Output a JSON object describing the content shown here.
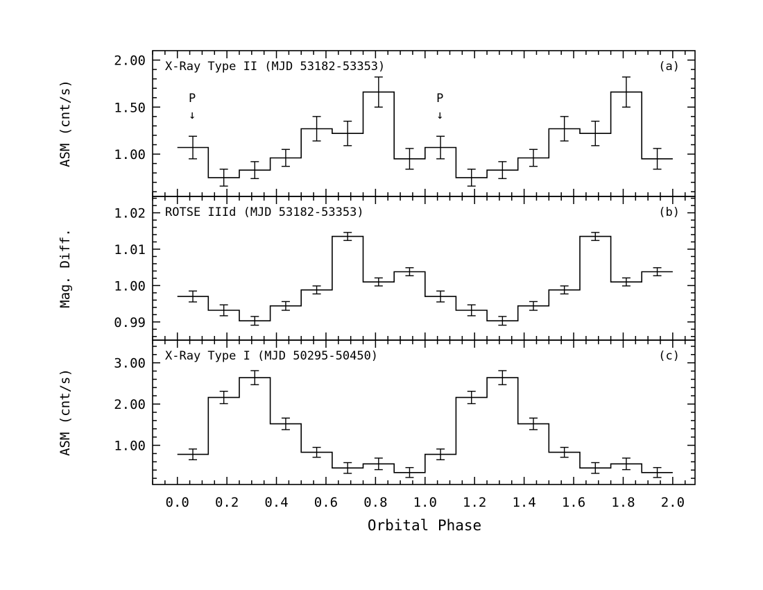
{
  "chart_data": [
    {
      "type": "line",
      "panel_tag": "(a)",
      "title": "X-Ray Type II (MJD 53182-53353)",
      "ylabel": "ASM (cnt/s)",
      "ylim": [
        0.55,
        2.1
      ],
      "yticks": [
        1.0,
        1.5,
        2.0
      ],
      "yticklabels": [
        "1.00",
        "1.50",
        "2.00"
      ],
      "yminor_step": 0.1,
      "bin_width": 0.125,
      "x": [
        0.0625,
        0.1875,
        0.3125,
        0.4375,
        0.5625,
        0.6875,
        0.8125,
        0.9375,
        1.0625,
        1.1875,
        1.3125,
        1.4375,
        1.5625,
        1.6875,
        1.8125,
        1.9375
      ],
      "y": [
        1.07,
        0.75,
        0.83,
        0.96,
        1.27,
        1.22,
        1.66,
        0.95,
        1.07,
        0.75,
        0.83,
        0.96,
        1.27,
        1.22,
        1.66,
        0.95
      ],
      "yerr": [
        0.12,
        0.09,
        0.09,
        0.09,
        0.13,
        0.13,
        0.16,
        0.11,
        0.12,
        0.09,
        0.09,
        0.09,
        0.13,
        0.13,
        0.16,
        0.11
      ],
      "annotations": [
        {
          "text": "P",
          "arrow": "↓",
          "x": 0.06,
          "y": 1.48
        },
        {
          "text": "P",
          "arrow": "↓",
          "x": 1.06,
          "y": 1.48
        }
      ]
    },
    {
      "type": "line",
      "panel_tag": "(b)",
      "title": "ROTSE IIId (MJD 53182-53353)",
      "ylabel": "Mag. Diff.",
      "ylim": [
        0.985,
        1.0245
      ],
      "yticks": [
        0.99,
        1.0,
        1.01,
        1.02
      ],
      "yticklabels": [
        "0.99",
        "1.00",
        "1.01",
        "1.02"
      ],
      "yminor_step": 0.002,
      "bin_width": 0.125,
      "x": [
        0.0625,
        0.1875,
        0.3125,
        0.4375,
        0.5625,
        0.6875,
        0.8125,
        0.9375,
        1.0625,
        1.1875,
        1.3125,
        1.4375,
        1.5625,
        1.6875,
        1.8125,
        1.9375
      ],
      "y": [
        0.997,
        0.9932,
        0.9903,
        0.9944,
        0.9988,
        1.0135,
        1.001,
        1.0038,
        0.997,
        0.9932,
        0.9903,
        0.9944,
        0.9988,
        1.0135,
        1.001,
        1.0038
      ],
      "yerr": [
        0.0015,
        0.0015,
        0.0012,
        0.0012,
        0.0011,
        0.0011,
        0.0011,
        0.0011,
        0.0015,
        0.0015,
        0.0012,
        0.0012,
        0.0011,
        0.0011,
        0.0011,
        0.0011
      ]
    },
    {
      "type": "line",
      "panel_tag": "(c)",
      "title": "X-Ray Type I (MJD 50295-50450)",
      "ylabel": "ASM (cnt/s)",
      "xlabel": "Orbital Phase",
      "ylim": [
        0.05,
        3.55
      ],
      "yticks": [
        1.0,
        2.0,
        3.0
      ],
      "yticklabels": [
        "1.00",
        "2.00",
        "3.00"
      ],
      "yminor_step": 0.2,
      "xlim": [
        -0.1,
        2.09
      ],
      "xticks": [
        0.0,
        0.2,
        0.4,
        0.6,
        0.8,
        1.0,
        1.2,
        1.4,
        1.6,
        1.8,
        2.0
      ],
      "xticklabels": [
        "0.0",
        "0.2",
        "0.4",
        "0.6",
        "0.8",
        "1.0",
        "1.2",
        "1.4",
        "1.6",
        "1.8",
        "2.0"
      ],
      "xminor_step": 0.05,
      "bin_width": 0.125,
      "x": [
        0.0625,
        0.1875,
        0.3125,
        0.4375,
        0.5625,
        0.6875,
        0.8125,
        0.9375,
        1.0625,
        1.1875,
        1.3125,
        1.4375,
        1.5625,
        1.6875,
        1.8125,
        1.9375
      ],
      "y": [
        0.78,
        2.16,
        2.64,
        1.52,
        0.83,
        0.45,
        0.55,
        0.34,
        0.78,
        2.16,
        2.64,
        1.52,
        0.83,
        0.45,
        0.55,
        0.34
      ],
      "yerr": [
        0.13,
        0.15,
        0.17,
        0.14,
        0.12,
        0.13,
        0.14,
        0.12,
        0.13,
        0.15,
        0.17,
        0.14,
        0.12,
        0.13,
        0.14,
        0.12
      ]
    }
  ]
}
